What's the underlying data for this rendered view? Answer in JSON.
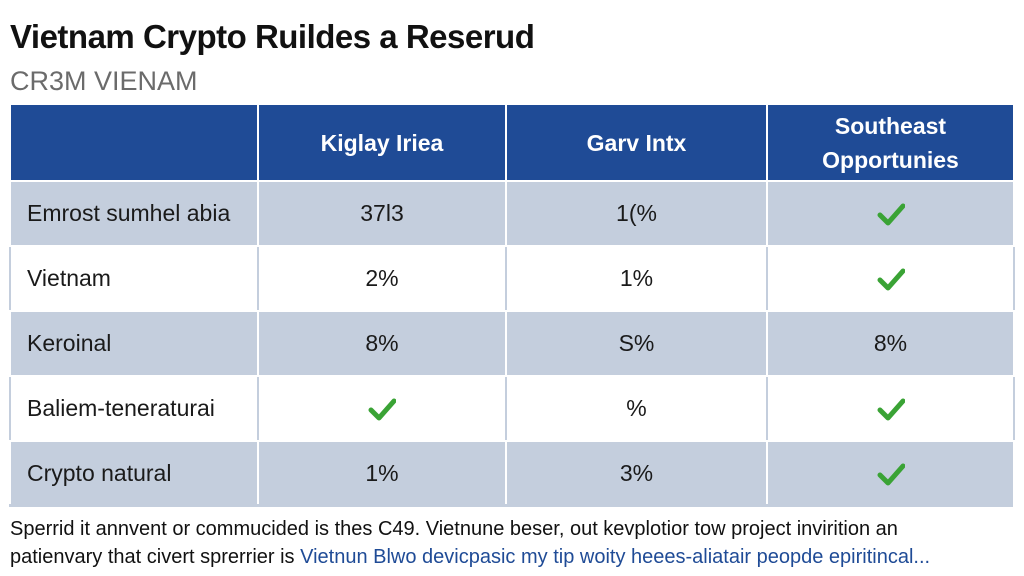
{
  "header": {
    "title": "Vietnam Crypto Ruildes a Reserud",
    "subtitle": "CR3M VIENAM"
  },
  "table": {
    "columns": [
      "",
      "Kiglay Iriea",
      "Garv Intx",
      "Southeast Opportunies"
    ],
    "rows": [
      {
        "label": "Emrost sumhel abia",
        "cells": [
          {
            "type": "text",
            "value": "37l3"
          },
          {
            "type": "text",
            "value": "1(%"
          },
          {
            "type": "check",
            "value": "check-icon"
          }
        ]
      },
      {
        "label": "Vietnam",
        "cells": [
          {
            "type": "text",
            "value": "2%"
          },
          {
            "type": "text",
            "value": "1%"
          },
          {
            "type": "check",
            "value": "check-icon"
          }
        ]
      },
      {
        "label": "Keroinal",
        "cells": [
          {
            "type": "text",
            "value": "8%"
          },
          {
            "type": "text",
            "value": "S%"
          },
          {
            "type": "text",
            "value": "8%"
          }
        ]
      },
      {
        "label": "Baliem-teneraturai",
        "cells": [
          {
            "type": "check",
            "value": "check-icon"
          },
          {
            "type": "text",
            "value": "%"
          },
          {
            "type": "check",
            "value": "check-icon"
          }
        ]
      },
      {
        "label": "Crypto natural",
        "cells": [
          {
            "type": "text",
            "value": "1%"
          },
          {
            "type": "text",
            "value": "3%"
          },
          {
            "type": "check",
            "value": "check-icon"
          }
        ]
      }
    ]
  },
  "footer": {
    "line1": "Sperrid it annvent or commucided is thes C49. Vietnune beser, out kevplotior tow project invirition an",
    "line2_plain": "patienvary that civert sprerrier is ",
    "line2_link": "Vietnun Blwo devicpasic my tip woity heees-aliatair peopde epiritincal..."
  },
  "colors": {
    "header_bg": "#1f4b96",
    "row_shade": "#c4cedd",
    "check_green": "#3aa335",
    "link": "#1f4b96"
  }
}
